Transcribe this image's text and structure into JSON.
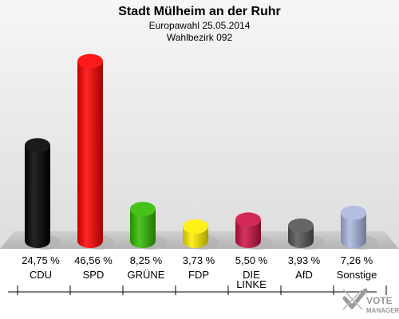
{
  "chart_data": {
    "type": "bar",
    "title": "Stadt Mülheim an der Ruhr",
    "subtitle_1": "Europawahl 25.05.2014",
    "subtitle_2": "Wahlbezirk 092",
    "categories": [
      "CDU",
      "SPD",
      "GRÜNE",
      "FDP",
      "DIE LINKE",
      "AfD",
      "Sonstige"
    ],
    "values": [
      24.75,
      46.56,
      8.25,
      3.73,
      5.5,
      3.93,
      7.26
    ],
    "value_labels": [
      "24,75 %",
      "46,56 %",
      "8,25 %",
      "3,73 %",
      "5,50 %",
      "3,93 %",
      "7,26 %"
    ],
    "colors": [
      "#000000",
      "#ff0000",
      "#33bb00",
      "#ffee00",
      "#cc1144",
      "#555555",
      "#a9b8e0"
    ],
    "ylim": [
      0,
      50
    ],
    "grid": false,
    "legend": "none"
  },
  "logo": {
    "line1": "VOTE",
    "line2": "MANAGER"
  }
}
